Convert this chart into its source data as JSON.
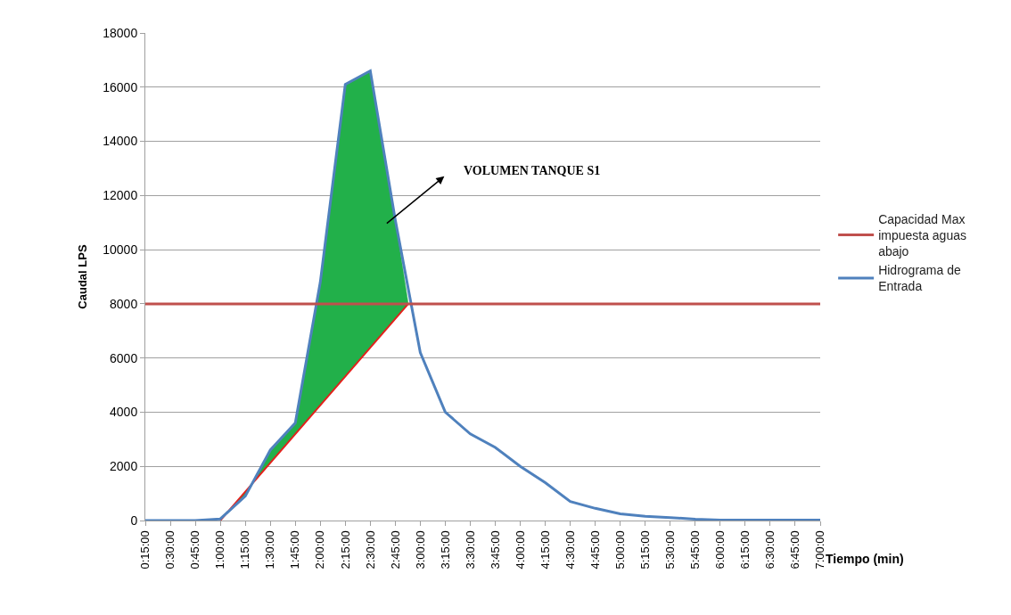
{
  "chart_data": {
    "type": "line",
    "xlabel": "Tiempo (min)",
    "ylabel": "Caudal LPS",
    "x": [
      0.25,
      0.5,
      0.75,
      1.0,
      1.25,
      1.5,
      1.75,
      2.0,
      2.25,
      2.5,
      2.75,
      3.0,
      3.25,
      3.5,
      3.75,
      4.0,
      4.25,
      4.5,
      4.75,
      5.0,
      5.25,
      5.5,
      5.75,
      6.0,
      6.25,
      6.5,
      6.75,
      7.0
    ],
    "series": [
      {
        "name": "Hidrograma de Entrada",
        "color": "#4f81bd",
        "values": [
          0,
          0,
          0,
          60,
          900,
          2600,
          3600,
          8800,
          16100,
          16600,
          11100,
          6200,
          4000,
          3200,
          2700,
          2000,
          1400,
          700,
          450,
          250,
          160,
          110,
          50,
          20,
          20,
          20,
          20,
          20
        ]
      },
      {
        "name": "Capacidad Max impuesta aguas abajo",
        "color": "#c0504d",
        "values": [
          8000,
          8000,
          8000,
          8000,
          8000,
          8000,
          8000,
          8000,
          8000,
          8000,
          8000,
          8000,
          8000,
          8000,
          8000,
          8000,
          8000,
          8000,
          8000,
          8000,
          8000,
          8000,
          8000,
          8000,
          8000,
          8000,
          8000,
          8000
        ]
      },
      {
        "type": "line",
        "color": "#e3201b",
        "x": [
          1.0,
          2.88
        ],
        "values": [
          0,
          8000
        ]
      },
      {
        "type": "area",
        "color": "#22b04a",
        "x": [
          1.0,
          1.25,
          1.5,
          1.75,
          2.0,
          2.25,
          2.5,
          2.75,
          2.88
        ],
        "values": [
          60,
          900,
          2600,
          3600,
          8800,
          16100,
          16600,
          11100,
          8000
        ]
      }
    ],
    "xlim": [
      0.25,
      7.0
    ],
    "xticks": [
      {
        "value": 0.25,
        "label": "0:15:00"
      },
      {
        "value": 0.5,
        "label": "0:30:00"
      },
      {
        "value": 0.75,
        "label": "0:45:00"
      },
      {
        "value": 1.0,
        "label": "1:00:00"
      },
      {
        "value": 1.25,
        "label": "1:15:00"
      },
      {
        "value": 1.5,
        "label": "1:30:00"
      },
      {
        "value": 1.75,
        "label": "1:45:00"
      },
      {
        "value": 2.0,
        "label": "2:00:00"
      },
      {
        "value": 2.25,
        "label": "2:15:00"
      },
      {
        "value": 2.5,
        "label": "2:30:00"
      },
      {
        "value": 2.75,
        "label": "2:45:00"
      },
      {
        "value": 3.0,
        "label": "3:00:00"
      },
      {
        "value": 3.25,
        "label": "3:15:00"
      },
      {
        "value": 3.5,
        "label": "3:30:00"
      },
      {
        "value": 3.75,
        "label": "3:45:00"
      },
      {
        "value": 4.0,
        "label": "4:00:00"
      },
      {
        "value": 4.25,
        "label": "4:15:00"
      },
      {
        "value": 4.5,
        "label": "4:30:00"
      },
      {
        "value": 4.75,
        "label": "4:45:00"
      },
      {
        "value": 5.0,
        "label": "5:00:00"
      },
      {
        "value": 5.25,
        "label": "5:15:00"
      },
      {
        "value": 5.5,
        "label": "5:30:00"
      },
      {
        "value": 5.75,
        "label": "5:45:00"
      },
      {
        "value": 6.0,
        "label": "6:00:00"
      },
      {
        "value": 6.25,
        "label": "6:15:00"
      },
      {
        "value": 6.5,
        "label": "6:30:00"
      },
      {
        "value": 6.75,
        "label": "6:45:00"
      },
      {
        "value": 7.0,
        "label": "7:00:00"
      }
    ],
    "ylim": [
      0,
      18000
    ],
    "yticks": [
      0,
      2000,
      4000,
      6000,
      8000,
      10000,
      12000,
      14000,
      16000,
      18000
    ],
    "grid": "y",
    "legend": "right",
    "marker": "none",
    "line_style": "solid",
    "annotations": [
      "VOLUMEN TANQUE S1"
    ]
  }
}
